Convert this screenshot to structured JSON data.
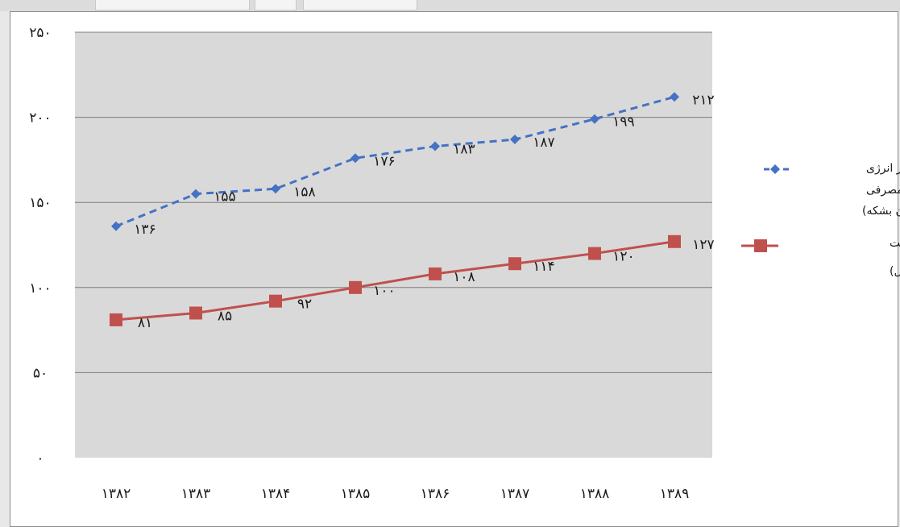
{
  "chart_data": {
    "type": "line",
    "title": "",
    "xlabel": "",
    "ylabel": "",
    "categories": [
      "۱۳۸۲",
      "۱۳۸۳",
      "۱۳۸۴",
      "۱۳۸۵",
      "۱۳۸۶",
      "۱۳۸۷",
      "۱۳۸۸",
      "۱۳۸۹"
    ],
    "ylim": [
      0,
      250
    ],
    "yticks": [
      0,
      50,
      100,
      150,
      200,
      250
    ],
    "ytick_labels": [
      "۰",
      "۵۰",
      "۱۰۰",
      "۱۵۰",
      "۲۰۰",
      "۲۵۰"
    ],
    "grid": true,
    "legend_position": "right",
    "series": [
      {
        "name_lines": [
          "مقدار انرژی",
          "مصرفی",
          "(میلیون بشکه)"
        ],
        "values": [
          136,
          155,
          158,
          176,
          183,
          187,
          199,
          212
        ],
        "value_labels": [
          "۱۳۶",
          "۱۵۵",
          "۱۵۸",
          "۱۷۶",
          "۱۸۳",
          "۱۸۷",
          "۱۹۹",
          "۲۱۲"
        ],
        "color": "#4472c4",
        "style": "dashed",
        "marker": "diamond"
      },
      {
        "name_lines": [
          "ارزش افزوده صنعت",
          "(هزار میلیارد ریال)"
        ],
        "values": [
          81,
          85,
          92,
          100,
          108,
          114,
          120,
          127
        ],
        "value_labels": [
          "۸۱",
          "۸۵",
          "۹۲",
          "۱۰۰",
          "۱۰۸",
          "۱۱۴",
          "۱۲۰",
          "۱۲۷"
        ],
        "color": "#c0504d",
        "style": "solid",
        "marker": "square"
      }
    ]
  },
  "colors": {
    "plot_bg": "#d9d9d9",
    "gridline": "#7f7f7f",
    "window_bg": "#e8e8e8"
  }
}
